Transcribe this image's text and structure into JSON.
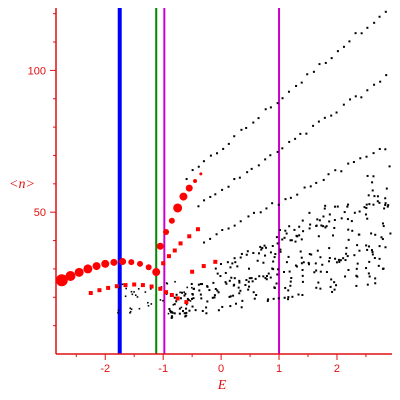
{
  "chart_data": {
    "type": "scatter",
    "xlabel": "E",
    "ylabel": "<n>",
    "xlim": [
      -2.85,
      2.95
    ],
    "ylim": [
      0,
      122
    ],
    "x_ticks": [
      -2,
      -1,
      0,
      1,
      2
    ],
    "y_ticks": [
      50,
      100
    ],
    "grid": false,
    "vertical_lines": [
      {
        "x": -1.75,
        "color": "#0000ff",
        "style": "thick"
      },
      {
        "x": -1.12,
        "color": "#008800",
        "style": "medium"
      },
      {
        "x": -0.98,
        "color": "#cc00cc",
        "style": "medium"
      },
      {
        "x": 1.0,
        "color": "#cc00cc",
        "style": "medium"
      }
    ],
    "colors": {
      "axis": "#e01010",
      "weighted_points": "#ff0000",
      "points": "#000000"
    },
    "series": [
      {
        "marker": "red circle, size proportional to weight",
        "points": [
          [
            -2.75,
            26.0,
            6
          ],
          [
            -2.6,
            27.5,
            5
          ],
          [
            -2.45,
            28.8,
            4.5
          ],
          [
            -2.3,
            30.0,
            4.5
          ],
          [
            -2.15,
            31.0,
            4
          ],
          [
            -2.0,
            31.8,
            4
          ],
          [
            -1.85,
            32.3,
            3.5
          ],
          [
            -1.7,
            32.6,
            3.5
          ],
          [
            -1.55,
            32.4,
            3
          ],
          [
            -1.4,
            31.8,
            3
          ],
          [
            -1.25,
            30.6,
            3
          ],
          [
            -1.12,
            28.9,
            4
          ],
          [
            -1.05,
            38.0,
            3.5
          ],
          [
            -0.95,
            43.0,
            3
          ],
          [
            -0.85,
            47.0,
            3
          ],
          [
            -0.75,
            51.5,
            4.5
          ],
          [
            -0.65,
            55.5,
            4
          ],
          [
            -0.55,
            58.5,
            3.5
          ],
          [
            -0.45,
            61.0,
            2
          ],
          [
            -0.35,
            63.5,
            1.5
          ]
        ]
      },
      {
        "marker": "small red squares",
        "points": [
          [
            -2.25,
            21.5
          ],
          [
            -2.1,
            22.5
          ],
          [
            -1.95,
            23.3
          ],
          [
            -1.8,
            23.9
          ],
          [
            -1.65,
            24.3
          ],
          [
            -1.5,
            24.5
          ],
          [
            -1.35,
            24.3
          ],
          [
            -1.2,
            23.8
          ],
          [
            -1.05,
            23.0
          ],
          [
            -0.95,
            21.8
          ],
          [
            -0.85,
            20.8
          ],
          [
            -0.75,
            19.6
          ],
          [
            -0.6,
            18.3
          ],
          [
            -1.0,
            32.0
          ],
          [
            -0.9,
            34.5
          ],
          [
            -0.8,
            36.5
          ],
          [
            -0.7,
            39.0
          ],
          [
            -0.55,
            41.5
          ],
          [
            -0.4,
            44.0
          ],
          [
            -0.5,
            29.0
          ],
          [
            -0.3,
            31.0
          ],
          [
            -0.1,
            32.5
          ]
        ]
      }
    ]
  }
}
